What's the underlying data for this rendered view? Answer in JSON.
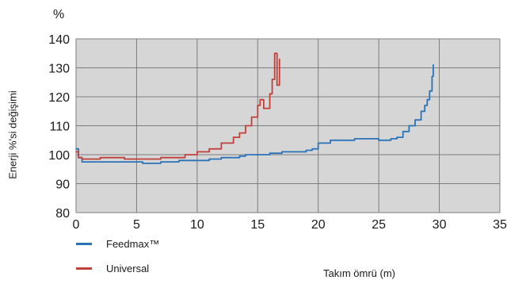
{
  "chart_data": {
    "type": "line",
    "title": "",
    "unit_label": "%",
    "ylabel": "Enerji %'si değişimi",
    "xlabel": "Takım ömrü (m)",
    "xlim": [
      0,
      35
    ],
    "ylim": [
      80,
      140
    ],
    "xticks": [
      "0",
      "5",
      "10",
      "15",
      "20",
      "25",
      "30",
      "35"
    ],
    "yticks": [
      "80",
      "90",
      "100",
      "110",
      "120",
      "130",
      "140"
    ],
    "grid": true,
    "legend_position": "bottom-left",
    "series": [
      {
        "name": "Feedmax™",
        "color": "#2b73b8",
        "x": [
          0,
          0.2,
          0.5,
          1,
          2,
          3,
          4,
          5,
          5.5,
          6,
          7,
          8,
          8.5,
          9,
          10,
          11,
          12,
          13,
          13.5,
          14,
          15,
          16,
          17,
          18,
          19,
          19.5,
          20,
          21,
          22,
          23,
          24,
          25,
          26,
          26.5,
          27,
          27.5,
          28,
          28.5,
          28.8,
          29,
          29.2,
          29.4,
          29.5
        ],
        "y": [
          102,
          99,
          97.5,
          97.5,
          97.5,
          97.5,
          97.5,
          97.5,
          97,
          97,
          97.5,
          97.5,
          98,
          98,
          98,
          98.5,
          99,
          99,
          99.5,
          100,
          100,
          100.5,
          101,
          101,
          101.5,
          102,
          104,
          105,
          105,
          105.5,
          105.5,
          105,
          105.5,
          106,
          108,
          110,
          112,
          115,
          117,
          119,
          122,
          127,
          131
        ]
      },
      {
        "name": "Universal",
        "color": "#c0403a",
        "x": [
          0,
          0.2,
          0.5,
          1,
          2,
          3,
          4,
          5,
          6,
          7,
          8,
          9,
          10,
          11,
          12,
          13,
          13.5,
          14,
          14.5,
          15,
          15.2,
          15.5,
          16,
          16.2,
          16.4,
          16.6,
          16.8
        ],
        "y": [
          101,
          99,
          98.5,
          98.5,
          99,
          99,
          98.5,
          98.5,
          98.5,
          99,
          99,
          100,
          101,
          102,
          104,
          106,
          107.5,
          110,
          113,
          117,
          119,
          116,
          121,
          126,
          135,
          124,
          133
        ]
      }
    ]
  }
}
